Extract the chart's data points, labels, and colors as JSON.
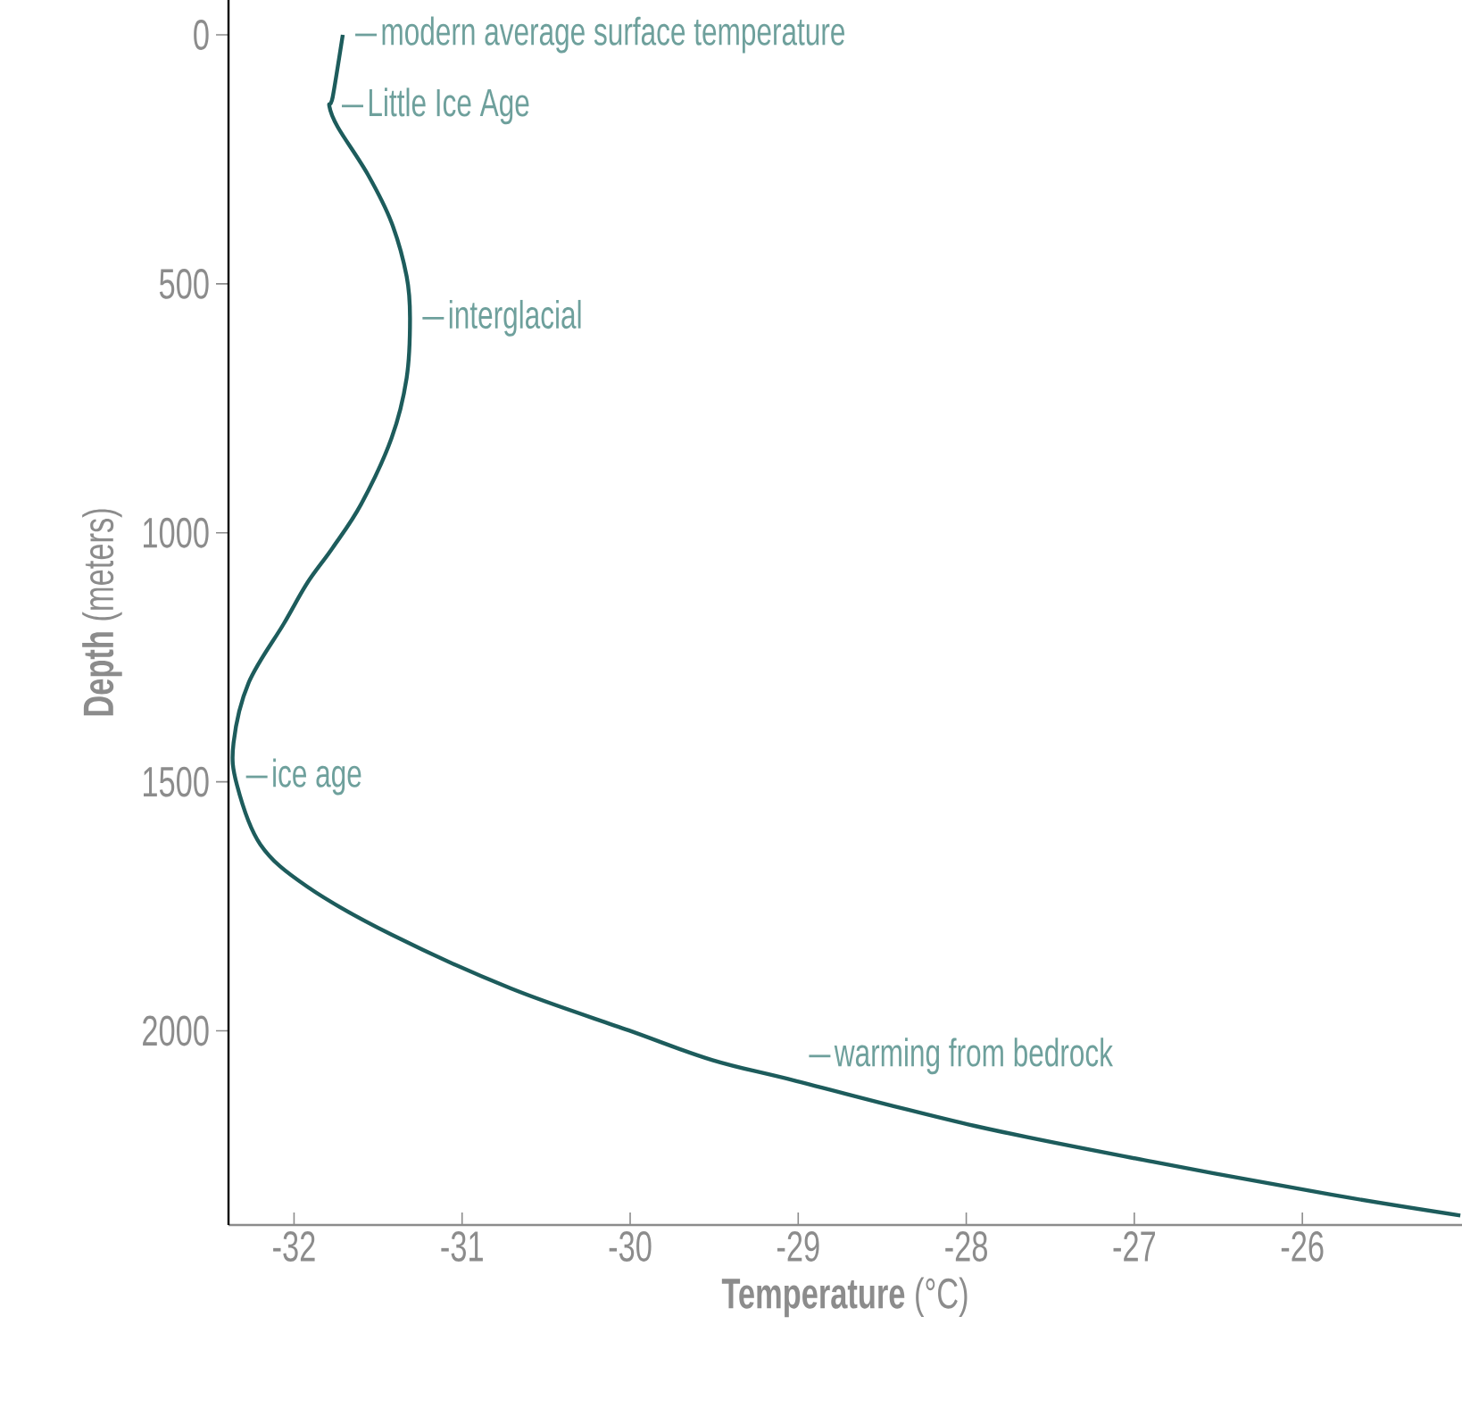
{
  "chart_data": {
    "type": "line",
    "xlabel": "**Temperature** (°C)",
    "ylabel": "**Depth** (meters)",
    "color": "#1d5c5c",
    "x": [
      -31.71,
      -31.77,
      -31.79,
      -31.74,
      -31.56,
      -31.42,
      -31.33,
      -31.31,
      -31.33,
      -31.42,
      -31.6,
      -31.77,
      -31.92,
      -32.06,
      -32.27,
      -32.36,
      -32.34,
      -32.2,
      -31.92,
      -31.42,
      -30.71,
      -30.01,
      -29.51,
      -29.01,
      -27.95,
      -26.89,
      -25.83,
      -25.06
    ],
    "values": [
      0,
      125,
      143,
      185,
      281,
      377,
      485,
      569,
      689,
      810,
      942,
      1030,
      1100,
      1182,
      1301,
      1422,
      1506,
      1626,
      1711,
      1807,
      1915,
      1999,
      2059,
      2101,
      2191,
      2263,
      2329,
      2371
    ],
    "xlim": [
      -32.39,
      -25.05
    ],
    "ylim": [
      2390,
      -70
    ],
    "xticks": [
      -32,
      -31,
      -30,
      -29,
      -28,
      -27,
      -26
    ],
    "yticks": [
      0,
      500,
      1000,
      1500,
      2000
    ],
    "annotations": [
      {
        "text": "modern average surface temperature",
        "x": -31.71,
        "y": 0
      },
      {
        "text": "Little Ice Age",
        "x": -31.79,
        "y": 143
      },
      {
        "text": "interglacial",
        "x": -31.31,
        "y": 569
      },
      {
        "text": "ice age",
        "x": -32.36,
        "y": 1490
      },
      {
        "text": "warming from bedrock",
        "x": -29.01,
        "y": 2101
      }
    ]
  }
}
